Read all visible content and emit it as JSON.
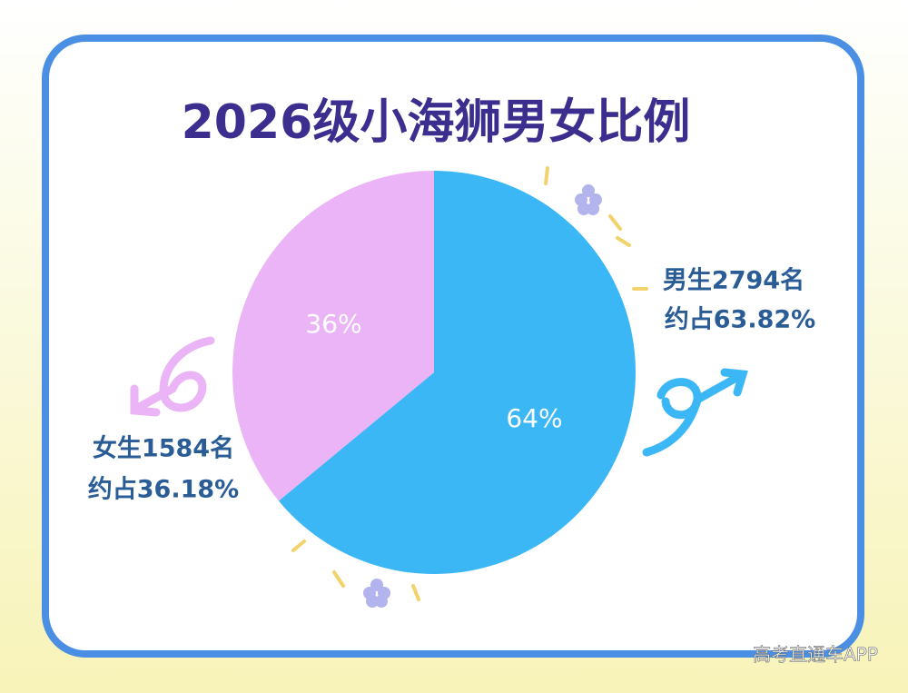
{
  "chart_data": {
    "type": "pie",
    "title": "2026级小海狮男女比例",
    "values": [
      64,
      36
    ],
    "value_labels": [
      "64%",
      "36%"
    ],
    "colors": [
      "#3cb7f6",
      "#eab4f6"
    ],
    "annotations": [
      "男生2794名",
      "约占63.82%",
      "女生1584名",
      "约占36.18%"
    ],
    "watermark": "高考直通车APP"
  }
}
